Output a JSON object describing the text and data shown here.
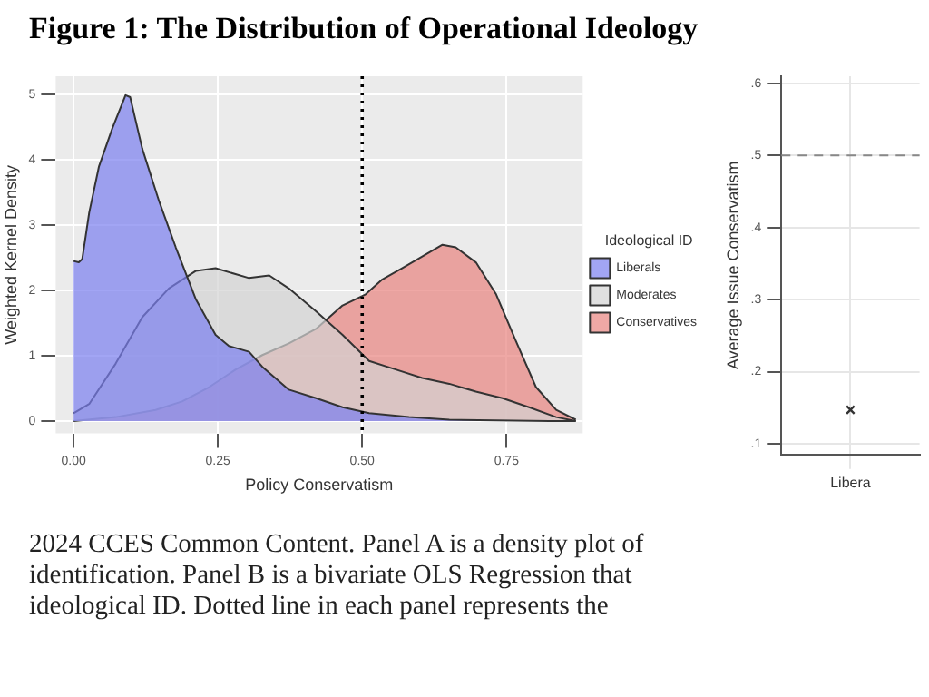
{
  "chart_data": [
    {
      "type": "area",
      "title": "Figure 1: The Distribution of Operational Ideology",
      "xlabel": "Policy Conservatism",
      "ylabel": "Weighted Kernel Density",
      "legend_title": "Ideological ID",
      "annotations": [
        "2024 CCES Common Content. Panel A is a density plot of",
        "identification. Panel B is a bivariate OLS Regression that",
        "ideological ID. Dotted line in each panel represents the"
      ],
      "series": [
        {
          "name": "Liberals",
          "color": "#7b7ff0",
          "x": [
            0,
            0.009,
            0.015,
            0.027,
            0.044,
            0.067,
            0.09,
            0.098,
            0.119,
            0.148,
            0.177,
            0.212,
            0.246,
            0.269,
            0.304,
            0.327,
            0.373,
            0.42,
            0.466,
            0.512,
            0.581,
            0.651,
            0.824,
            0.87
          ],
          "values": [
            2.45,
            2.43,
            2.48,
            3.19,
            3.9,
            4.48,
            4.99,
            4.96,
            4.17,
            3.37,
            2.66,
            1.86,
            1.32,
            1.15,
            1.06,
            0.83,
            0.48,
            0.35,
            0.21,
            0.12,
            0.06,
            0.02,
            0,
            0
          ]
        },
        {
          "name": "Moderates",
          "color": "#d3d3d3",
          "x": [
            0,
            0.027,
            0.073,
            0.119,
            0.165,
            0.212,
            0.246,
            0.304,
            0.339,
            0.373,
            0.42,
            0.466,
            0.512,
            0.558,
            0.604,
            0.651,
            0.697,
            0.743,
            0.789,
            0.836,
            0.87
          ],
          "values": [
            0.12,
            0.26,
            0.88,
            1.59,
            2.03,
            2.3,
            2.34,
            2.19,
            2.23,
            2.03,
            1.68,
            1.32,
            0.92,
            0.79,
            0.66,
            0.57,
            0.45,
            0.35,
            0.21,
            0.06,
            0
          ]
        },
        {
          "name": "Conservatives",
          "color": "#e8837f",
          "x": [
            0,
            0.073,
            0.142,
            0.188,
            0.235,
            0.281,
            0.327,
            0.373,
            0.42,
            0.466,
            0.506,
            0.535,
            0.569,
            0.604,
            0.639,
            0.662,
            0.697,
            0.732,
            0.766,
            0.801,
            0.836,
            0.87
          ],
          "values": [
            0,
            0.06,
            0.17,
            0.3,
            0.52,
            0.79,
            1.01,
            1.19,
            1.41,
            1.77,
            1.94,
            2.17,
            2.34,
            2.52,
            2.7,
            2.66,
            2.43,
            1.94,
            1.23,
            0.52,
            0.17,
            0.02
          ]
        }
      ],
      "xlim": [
        -0.031,
        0.882
      ],
      "xticks": [
        {
          "value": 0,
          "label": "0.00"
        },
        {
          "value": 0.25,
          "label": "0.25"
        },
        {
          "value": 0.5,
          "label": "0.50"
        },
        {
          "value": 0.75,
          "label": "0.75"
        }
      ],
      "ylim": [
        -0.19,
        5.28
      ],
      "yticks": [
        0,
        1,
        2,
        3,
        4,
        5
      ],
      "ref_lines": [
        {
          "axis": "x",
          "value": 0.5,
          "color": "#000000",
          "line_style": "dotted"
        }
      ],
      "grid": true,
      "legend": "right"
    },
    {
      "type": "scatter",
      "ylabel": "Average Issue Conservatism",
      "categories": [
        "Libera"
      ],
      "series": [
        {
          "color": "#333333",
          "values": [
            0.147
          ]
        }
      ],
      "ylim": [
        0.085,
        0.61
      ],
      "yticks": [
        {
          "value": 0.1,
          "label": ".1"
        },
        {
          "value": 0.2,
          "label": ".2"
        },
        {
          "value": 0.3,
          "label": ".3"
        },
        {
          "value": 0.4,
          "label": ".4"
        },
        {
          "value": 0.5,
          "label": ".5"
        },
        {
          "value": 0.6,
          "label": ".6"
        }
      ],
      "ref_lines": [
        {
          "axis": "y",
          "value": 0.5,
          "color": "#888888",
          "line_style": "dashed"
        }
      ],
      "grid": true,
      "marker": "cross"
    }
  ]
}
